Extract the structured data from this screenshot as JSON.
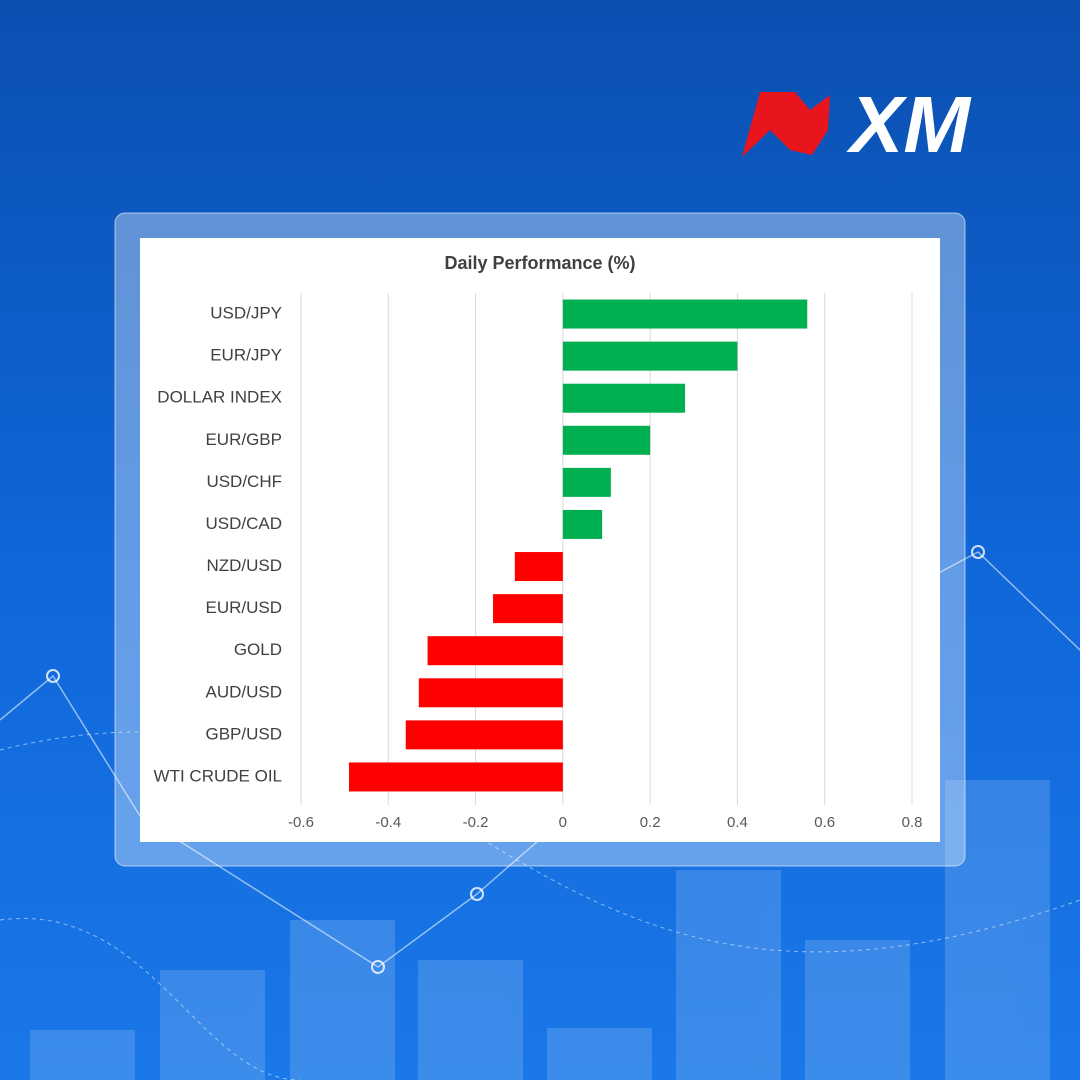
{
  "brand": "XM",
  "chart_data": {
    "type": "barh",
    "title": "Daily Performance (%)",
    "categories": [
      "USD/JPY",
      "EUR/JPY",
      "DOLLAR INDEX",
      "EUR/GBP",
      "USD/CHF",
      "USD/CAD",
      "NZD/USD",
      "EUR/USD",
      "GOLD",
      "AUD/USD",
      "GBP/USD",
      "WTI CRUDE OIL"
    ],
    "values": [
      0.56,
      0.4,
      0.28,
      0.2,
      0.11,
      0.09,
      -0.11,
      -0.16,
      -0.31,
      -0.33,
      -0.36,
      -0.49
    ],
    "positive_color": "#00b050",
    "negative_color": "#ff0000",
    "xlim": [
      -0.6,
      0.8
    ],
    "xticks": [
      -0.6,
      -0.4,
      -0.2,
      0,
      0.2,
      0.4,
      0.6,
      0.8
    ],
    "grid": true
  }
}
